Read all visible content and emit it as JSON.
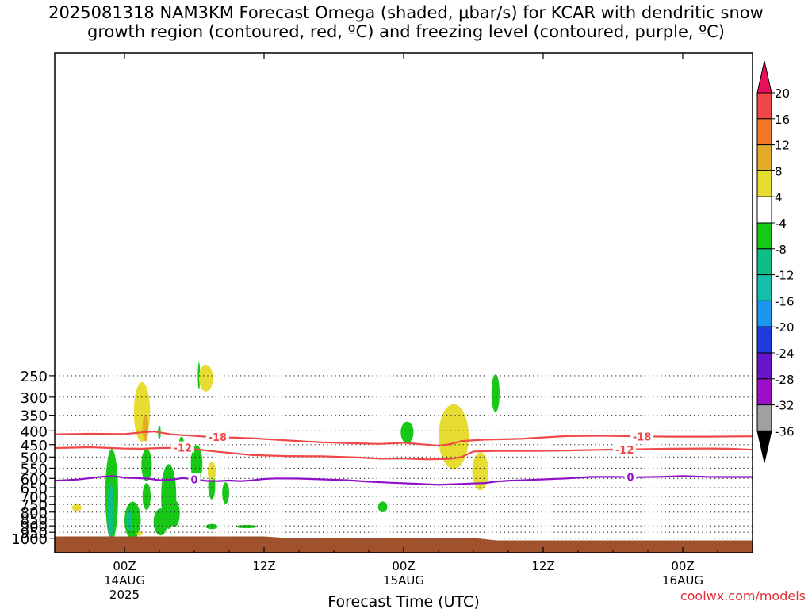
{
  "title": {
    "line1": "2025081318 NAM3KM Forecast Omega (shaded, μbar/s) for KCAR with dendritic snow",
    "line2": "growth region (contoured, red, ºC) and freezing level (contoured, purple, ºC)"
  },
  "credit": "coolwx.com/models",
  "colors": {
    "temp_contour": "#f04848",
    "freezing_level": "#9010c8",
    "terrain": "#a0522d",
    "omega_pos_4_8": "#e6dc32",
    "omega_pos_8_12": "#e1aa28",
    "omega_neg_4_8": "#17c817",
    "omega_neg_8_12": "#0fbe86",
    "omega_neg_12_16": "#14beaa"
  },
  "chart_data": {
    "type": "contour",
    "xlabel": "Forecast Time (UTC)",
    "x_unit": "forecast hour from 2025081318",
    "xlim": [
      0,
      60
    ],
    "y_scale": "log-pressure, inverted",
    "ylim_hPa": [
      1040,
      180
    ],
    "y_ticks": [
      250,
      300,
      350,
      400,
      450,
      500,
      550,
      600,
      650,
      700,
      750,
      800,
      850,
      900,
      950,
      1000
    ],
    "grid": "dotted at every y tick",
    "x_ticks": [
      {
        "hour": 6,
        "label": "00Z",
        "sub1": "14AUG",
        "sub2": "2025"
      },
      {
        "hour": 18,
        "label": "12Z",
        "sub1": "",
        "sub2": ""
      },
      {
        "hour": 30,
        "label": "00Z",
        "sub1": "15AUG",
        "sub2": ""
      },
      {
        "hour": 42,
        "label": "12Z",
        "sub1": "",
        "sub2": ""
      },
      {
        "hour": 54,
        "label": "00Z",
        "sub1": "16AUG",
        "sub2": ""
      }
    ],
    "colorbar": {
      "labels": [
        20,
        16,
        12,
        8,
        4,
        -4,
        -8,
        -12,
        -16,
        -20,
        -24,
        -28,
        -32,
        -36
      ],
      "colors": [
        "#e8105a",
        "#f04848",
        "#f07828",
        "#e1aa28",
        "#e6dc32",
        "#ffffff",
        "#17c817",
        "#0fbe86",
        "#14beaa",
        "#1e96f0",
        "#1e3cdc",
        "#6a14c8",
        "#9b0fc8",
        "#a0a0a0",
        "#000000"
      ]
    },
    "contours": [
      {
        "label": "-18",
        "color_key": "temp_contour",
        "hours": [
          0,
          3,
          6,
          7.5,
          8.5,
          10,
          13,
          17,
          20,
          23,
          26,
          28,
          30,
          32,
          33,
          34,
          35,
          37,
          40,
          44,
          47,
          50,
          53,
          56,
          60
        ],
        "hPa": [
          412,
          410,
          411,
          405,
          402,
          412,
          420,
          426,
          434,
          441,
          445,
          447,
          443,
          450,
          454,
          448,
          436,
          431,
          428,
          418,
          417,
          419,
          420,
          420,
          419
        ],
        "label_hours": [
          14,
          50.5
        ],
        "halo_bg": "#ffffff"
      },
      {
        "label": "-12",
        "color_key": "temp_contour",
        "hours": [
          0,
          3,
          6,
          7.5,
          9,
          11,
          14,
          17,
          20,
          23,
          26,
          28,
          30,
          32,
          34,
          35,
          36,
          38,
          41,
          44,
          47,
          50,
          53,
          56,
          58,
          60
        ],
        "hPa": [
          463,
          460,
          465,
          466,
          463,
          462,
          478,
          492,
          496,
          497,
          502,
          507,
          506,
          510,
          508,
          500,
          477,
          475,
          475,
          473,
          470,
          468,
          466,
          465,
          466,
          470
        ],
        "label_hours": [
          11,
          49
        ]
      },
      {
        "label": "0",
        "color_key": "freezing_level",
        "hours": [
          0,
          2,
          4,
          5,
          6,
          8,
          9,
          10,
          11,
          12,
          13,
          14,
          15,
          16,
          17,
          18,
          19,
          21,
          23,
          25,
          27,
          29,
          31,
          33,
          35,
          37,
          38,
          39,
          40,
          42,
          44,
          46,
          48,
          50,
          52,
          54,
          56,
          58,
          60
        ],
        "hPa": [
          612,
          606,
          592,
          588,
          596,
          601,
          609,
          607,
          598,
          604,
          613,
          614,
          611,
          614,
          610,
          603,
          600,
          601,
          605,
          609,
          617,
          623,
          628,
          634,
          629,
          624,
          616,
          612,
          610,
          605,
          600,
          593,
          592,
          594,
          592,
          588,
          592,
          593,
          593
        ],
        "label_hours": [
          12,
          49.5
        ]
      }
    ],
    "terrain_top_hPa": 985,
    "omega_areas": [
      {
        "level": 8,
        "center": [
          1.9,
          770
        ],
        "half_width_h": 0.4,
        "half_height": 0.014
      },
      {
        "level": 8,
        "center": [
          7.3,
          960
        ],
        "half_width_h": 0.25,
        "half_height": 0.009
      },
      {
        "level": 8,
        "center": [
          7.5,
          340
        ],
        "half_width_h": 0.7,
        "half_height": 0.11
      },
      {
        "level": 12,
        "center": [
          7.8,
          390
        ],
        "half_width_h": 0.25,
        "half_height": 0.05
      },
      {
        "level": 8,
        "center": [
          13,
          255
        ],
        "half_width_h": 0.6,
        "half_height": 0.05
      },
      {
        "level": 8,
        "center": [
          13.5,
          565
        ],
        "half_width_h": 0.35,
        "half_height": 0.035
      },
      {
        "level": 8,
        "center": [
          34.3,
          420
        ],
        "half_width_h": 1.3,
        "half_height": 0.12
      },
      {
        "level": 8,
        "center": [
          36.6,
          565
        ],
        "half_width_h": 0.7,
        "half_height": 0.07
      },
      {
        "level": -4,
        "center": [
          4.9,
          690
        ],
        "half_width_h": 0.55,
        "half_height": 0.17
      },
      {
        "level": -8,
        "center": [
          4.8,
          790
        ],
        "half_width_h": 0.3,
        "half_height": 0.1
      },
      {
        "level": -4,
        "center": [
          6.7,
          860
        ],
        "half_width_h": 0.7,
        "half_height": 0.07
      },
      {
        "level": -8,
        "center": [
          6.4,
          860
        ],
        "half_width_h": 0.25,
        "half_height": 0.04
      },
      {
        "level": -4,
        "center": [
          7.9,
          535
        ],
        "half_width_h": 0.45,
        "half_height": 0.06
      },
      {
        "level": -4,
        "center": [
          7.9,
          700
        ],
        "half_width_h": 0.35,
        "half_height": 0.05
      },
      {
        "level": -4,
        "center": [
          9.0,
          405
        ],
        "half_width_h": 0.12,
        "half_height": 0.025
      },
      {
        "level": -4,
        "center": [
          9.1,
          870
        ],
        "half_width_h": 0.6,
        "half_height": 0.05
      },
      {
        "level": -4,
        "center": [
          9.8,
          700
        ],
        "half_width_h": 0.65,
        "half_height": 0.12
      },
      {
        "level": -4,
        "center": [
          10.3,
          810
        ],
        "half_width_h": 0.45,
        "half_height": 0.05
      },
      {
        "level": -4,
        "center": [
          10.9,
          440
        ],
        "half_width_h": 0.2,
        "half_height": 0.02
      },
      {
        "level": -4,
        "center": [
          12.2,
          530
        ],
        "half_width_h": 0.5,
        "half_height": 0.07
      },
      {
        "level": -4,
        "center": [
          12.4,
          250
        ],
        "half_width_h": 0.1,
        "half_height": 0.05
      },
      {
        "level": -4,
        "center": [
          13.5,
          640
        ],
        "half_width_h": 0.3,
        "half_height": 0.05
      },
      {
        "level": -4,
        "center": [
          13.5,
          905
        ],
        "half_width_h": 0.5,
        "half_height": 0.01
      },
      {
        "level": -4,
        "center": [
          14.7,
          680
        ],
        "half_width_h": 0.3,
        "half_height": 0.04
      },
      {
        "level": -4,
        "center": [
          16.5,
          905
        ],
        "half_width_h": 0.9,
        "half_height": 0.006
      },
      {
        "level": -4,
        "center": [
          28.2,
          765
        ],
        "half_width_h": 0.4,
        "half_height": 0.02
      },
      {
        "level": -4,
        "center": [
          30.3,
          405
        ],
        "half_width_h": 0.55,
        "half_height": 0.04
      },
      {
        "level": -4,
        "center": [
          37.9,
          290
        ],
        "half_width_h": 0.35,
        "half_height": 0.07
      }
    ]
  }
}
